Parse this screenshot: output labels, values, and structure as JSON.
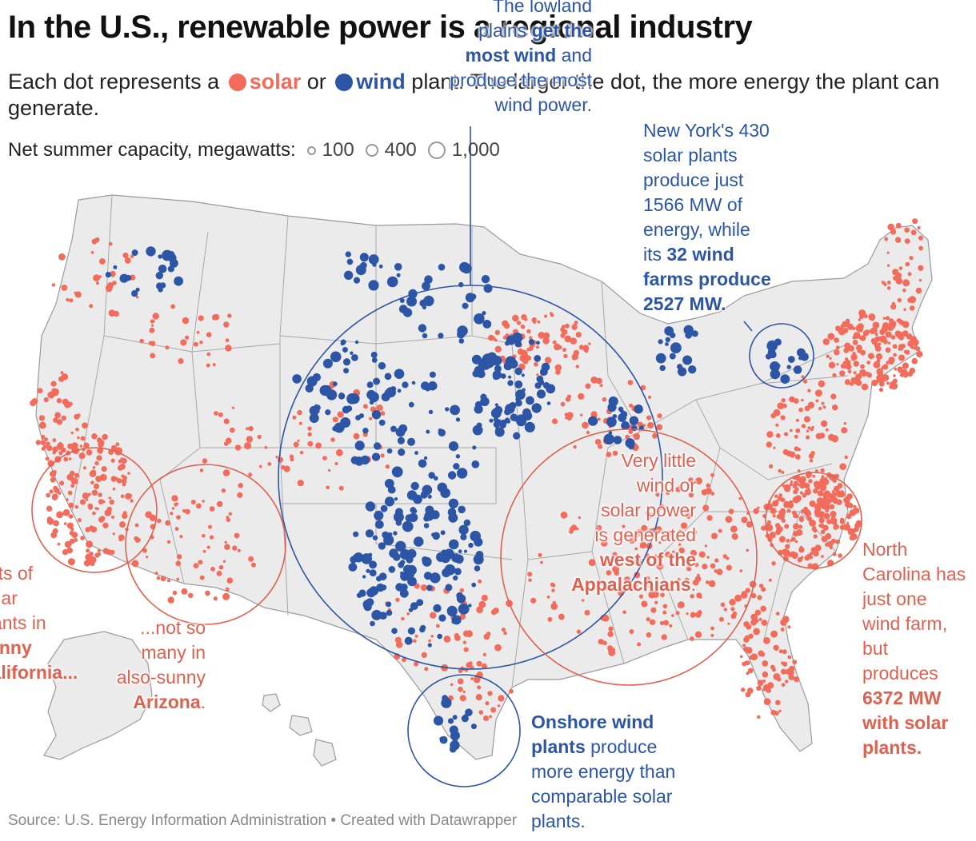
{
  "title": "In the U.S., renewable power is a regional industry",
  "subtitle": {
    "prefix": "Each dot represents a",
    "solar_label": "solar",
    "middle": "or",
    "wind_label": "wind",
    "suffix": "plant. The larger the dot, the more energy the plant can generate."
  },
  "legend": {
    "label": "Net summer capacity, megawatts:",
    "items": [
      "100",
      "400",
      "1,000"
    ]
  },
  "colors": {
    "solar": "#f26b5b",
    "wind": "#2c55a5",
    "land": "#ebebeb",
    "border": "#9a9a9a"
  },
  "annotations": {
    "plains": {
      "line1": "The lowland",
      "line2_pre": "plains ",
      "line2_bold": "get the",
      "line3_bold": "most wind",
      "line3_post": " and",
      "line4": "produce the most",
      "line5": "wind power."
    },
    "new_york": {
      "line1": "New York's 430",
      "line2": "solar plants",
      "line3": "produce just",
      "line4": "1566 MW of",
      "line5": "energy, while",
      "line6_pre": "its ",
      "line6_bold": "32 wind",
      "line7_bold": "farms produce",
      "line8_bold": "2527 MW."
    },
    "appalachians": {
      "line1": "Very little",
      "line2": "wind or",
      "line3": "solar power",
      "line4": "is generated",
      "line5_bold": "west of the",
      "line6_bold": "Appalachians",
      "line6_post": "."
    },
    "north_carolina": {
      "line1": "North",
      "line2": "Carolina has",
      "line3": "just one",
      "line4": "wind farm,",
      "line5": "but",
      "line6": "produces",
      "line7_bold": "6372 MW",
      "line8_bold": "with solar",
      "line9_bold": "plants."
    },
    "california": {
      "line1": "Lots of",
      "line2": "solar",
      "line3": "plants in",
      "line4_bold": "sunny",
      "line5_bold": "California..."
    },
    "arizona": {
      "line1": "...not so",
      "line2": "many in",
      "line3": "also-sunny",
      "line4_bold": "Arizona",
      "line4_post": "."
    },
    "texas": {
      "line1_bold": "Onshore wind",
      "line2_bold": "plants",
      "line2_post": " produce",
      "line3": "more energy than",
      "line4": "comparable solar",
      "line5": "plants."
    }
  },
  "source": "Source: U.S. Energy Information Administration • Created with Datawrapper"
}
